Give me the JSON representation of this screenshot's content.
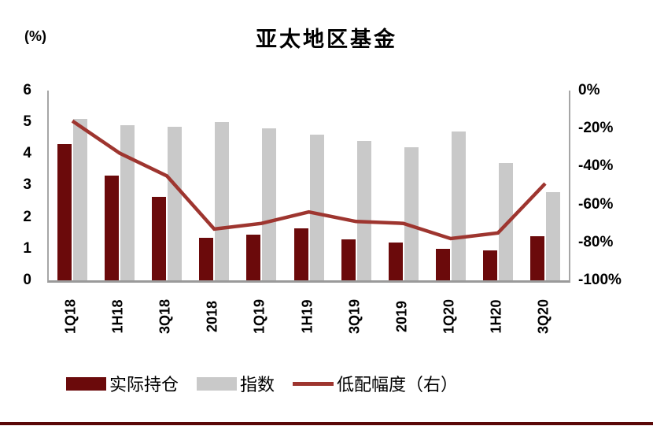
{
  "title": "亚太地区基金",
  "unit_label": "(%)",
  "colors": {
    "bar_actual": "#6b0a0b",
    "bar_index": "#c9c9c9",
    "line_underweight": "#9e352f",
    "axis_gray": "#a6a6a6",
    "divider": "#5a0808"
  },
  "legend": [
    {
      "key": "actual-holdings",
      "label": "实际持仓",
      "type": "bar",
      "color": "#6b0a0b"
    },
    {
      "key": "index",
      "label": "指数",
      "type": "bar",
      "color": "#c9c9c9"
    },
    {
      "key": "underweight-right",
      "label": "低配幅度（右）",
      "type": "line",
      "color": "#9e352f"
    }
  ],
  "chart_data": {
    "type": "bar",
    "subtype": "bar+line combo, dual axis",
    "title": "亚太地区基金",
    "categories": [
      "1Q18",
      "1H18",
      "3Q18",
      "2018",
      "1Q19",
      "1H19",
      "3Q19",
      "2019",
      "1Q20",
      "1H20",
      "3Q20"
    ],
    "series": [
      {
        "key": "actual_holdings",
        "name": "实际持仓",
        "type": "bar",
        "axis": "left",
        "color": "#6b0a0b",
        "values": [
          4.3,
          3.3,
          2.65,
          1.35,
          1.45,
          1.65,
          1.3,
          1.2,
          1.0,
          0.95,
          1.4
        ]
      },
      {
        "key": "index",
        "name": "指数",
        "type": "bar",
        "axis": "left",
        "color": "#c9c9c9",
        "values": [
          5.1,
          4.9,
          4.85,
          5.0,
          4.8,
          4.6,
          4.4,
          4.2,
          4.7,
          3.7,
          2.8
        ]
      },
      {
        "key": "underweight",
        "name": "低配幅度（右）",
        "type": "line",
        "axis": "right",
        "color": "#9e352f",
        "values": [
          -16,
          -33,
          -45,
          -73,
          -70,
          -64,
          -69,
          -70,
          -78,
          -75,
          -49
        ]
      }
    ],
    "left_axis": {
      "label": "(%)",
      "min": 0,
      "max": 6,
      "ticks": [
        "6",
        "5",
        "4",
        "3",
        "2",
        "1",
        "0"
      ]
    },
    "right_axis": {
      "label": "",
      "min": -100,
      "max": 0,
      "ticks": [
        "0%",
        "-20%",
        "-40%",
        "-60%",
        "-80%",
        "-100%"
      ]
    },
    "grid": false,
    "legend_position": "bottom",
    "x_tick_rotation": -90
  }
}
